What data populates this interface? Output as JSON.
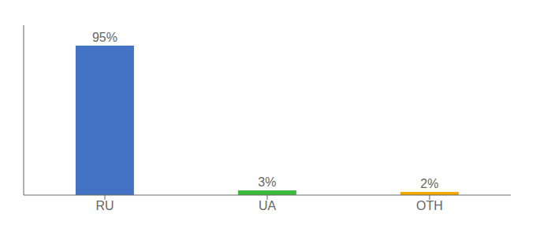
{
  "chart_data": {
    "type": "bar",
    "categories": [
      "RU",
      "UA",
      "OTH"
    ],
    "values": [
      95,
      3,
      2
    ],
    "value_labels": [
      "95%",
      "3%",
      "2%"
    ],
    "data_labels": true,
    "colors": [
      "#4472c4",
      "#3dbb3d",
      "#f5a800"
    ],
    "ylim": [
      0,
      108
    ],
    "tick_labels": "x"
  }
}
